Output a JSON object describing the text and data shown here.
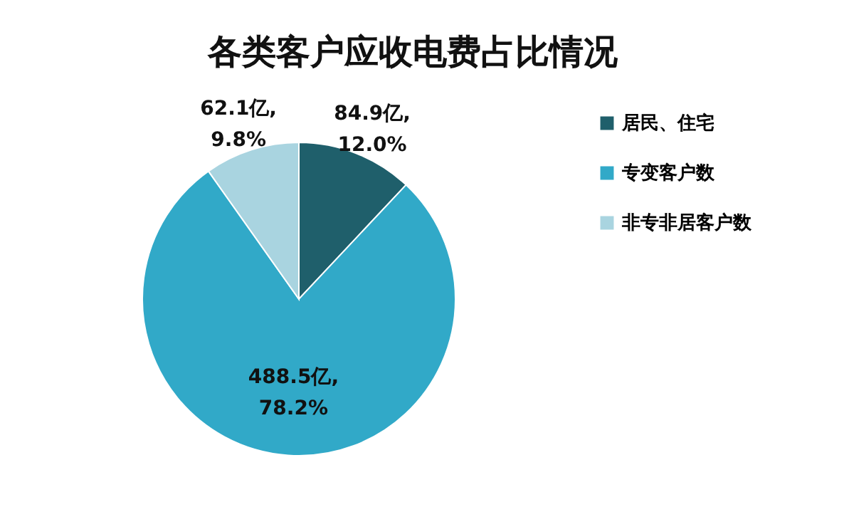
{
  "chart_data": {
    "type": "pie",
    "title": "各类客户应收电费占比情况",
    "categories": [
      "居民、住宅",
      "专变客户数",
      "非专非居客户数"
    ],
    "values": [
      12.0,
      78.2,
      9.8
    ],
    "colors": [
      "#1f5f6b",
      "#31a9c8",
      "#a9d4e0"
    ],
    "value_labels": [
      "84.9亿, 12.0%",
      "488.5亿, 78.2%",
      "62.1亿, 9.8%"
    ],
    "legend": "right"
  }
}
